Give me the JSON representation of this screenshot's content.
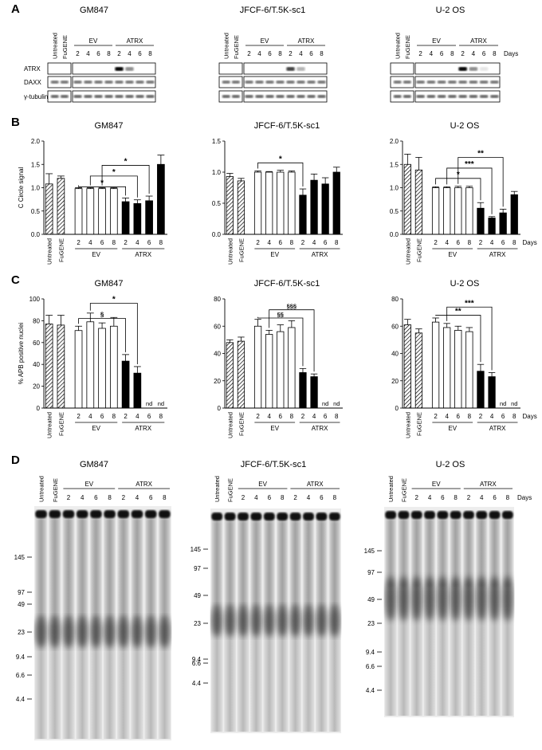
{
  "panel_letters": [
    "A",
    "B",
    "C",
    "D"
  ],
  "cell_lines": [
    "GM847",
    "JFCF-6/T.5K-sc1",
    "U-2 OS"
  ],
  "lane_headers": {
    "untreated": "Untreated",
    "fugene": "FuGENE",
    "ev": "EV",
    "atrx": "ATRX",
    "days_label": "Days",
    "day_ticks": [
      "2",
      "4",
      "6",
      "8"
    ]
  },
  "western": {
    "rows": [
      "ATRX",
      "DAXX",
      "γ-tubulin"
    ],
    "atrx_band_relative_intensity": [
      [
        0,
        0,
        0,
        0,
        1.0,
        0.45,
        0,
        0
      ],
      [
        0,
        0,
        0,
        0,
        0.75,
        0.3,
        0,
        0
      ],
      [
        0,
        0,
        0,
        0,
        1.0,
        0.45,
        0.1,
        0
      ]
    ]
  },
  "chart_data": [
    {
      "type": "bar",
      "panel": "B",
      "title": "GM847",
      "ylabel": "C Circle signal",
      "ylim": [
        0,
        2.0
      ],
      "yticks": [
        "0.0",
        "0.5",
        "1.0",
        "1.5",
        "2.0"
      ],
      "categories": [
        "Untreated",
        "FuGENE",
        "EV 2",
        "EV 4",
        "EV 6",
        "EV 8",
        "ATRX 2",
        "ATRX 4",
        "ATRX 6",
        "ATRX 8"
      ],
      "values": [
        1.08,
        1.2,
        0.98,
        0.98,
        0.98,
        0.98,
        0.7,
        0.66,
        0.72,
        1.5
      ],
      "errors": [
        0.22,
        0.05,
        0.02,
        0.02,
        0.02,
        0.02,
        0.08,
        0.08,
        0.1,
        0.2
      ],
      "annotations": [
        "*",
        "*",
        "*"
      ]
    },
    {
      "type": "bar",
      "panel": "B",
      "title": "JFCF-6/T.5K-sc1",
      "ylabel": "",
      "ylim": [
        0,
        1.5
      ],
      "yticks": [
        "0.0",
        "0.5",
        "1.0",
        "1.5"
      ],
      "categories": [
        "Untreated",
        "FuGENE",
        "EV 2",
        "EV 4",
        "EV 6",
        "EV 8",
        "ATRX 2",
        "ATRX 4",
        "ATRX 6",
        "ATRX 8"
      ],
      "values": [
        0.93,
        0.86,
        1.0,
        1.0,
        1.0,
        1.0,
        0.63,
        0.87,
        0.81,
        1.0
      ],
      "errors": [
        0.05,
        0.04,
        0.02,
        0.01,
        0.03,
        0.02,
        0.1,
        0.1,
        0.1,
        0.08
      ],
      "annotations": [
        "*"
      ]
    },
    {
      "type": "bar",
      "panel": "B",
      "title": "U-2 OS",
      "ylabel": "",
      "ylim": [
        0,
        2.0
      ],
      "yticks": [
        "0.0",
        "0.5",
        "1.0",
        "1.5",
        "2.0"
      ],
      "categories": [
        "Untreated",
        "FuGENE",
        "EV 2",
        "EV 4",
        "EV 6",
        "EV 8",
        "ATRX 2",
        "ATRX 4",
        "ATRX 6",
        "ATRX 8"
      ],
      "values": [
        1.5,
        1.38,
        1.0,
        1.0,
        1.0,
        1.0,
        0.56,
        0.35,
        0.46,
        0.85
      ],
      "errors": [
        0.22,
        0.27,
        0.02,
        0.02,
        0.03,
        0.03,
        0.12,
        0.03,
        0.08,
        0.07
      ],
      "annotations": [
        "*",
        "***",
        "**"
      ]
    },
    {
      "type": "bar",
      "panel": "C",
      "title": "GM847",
      "ylabel": "% APB positive nuclei",
      "ylim": [
        0,
        100
      ],
      "yticks": [
        "0",
        "20",
        "40",
        "60",
        "80",
        "100"
      ],
      "categories": [
        "Untreated",
        "FuGENE",
        "EV 2",
        "EV 4",
        "EV 6",
        "EV 8",
        "ATRX 2",
        "ATRX 4",
        "ATRX 6",
        "ATRX 8"
      ],
      "values": [
        77,
        76,
        71,
        79,
        73,
        75,
        43,
        32,
        null,
        null
      ],
      "errors": [
        8,
        9,
        4,
        8,
        5,
        8,
        6,
        6,
        null,
        null
      ],
      "annotations": [
        "§",
        "*",
        "nd",
        "nd"
      ]
    },
    {
      "type": "bar",
      "panel": "C",
      "title": "JFCF-6/T.5K-sc1",
      "ylabel": "",
      "ylim": [
        0,
        80
      ],
      "yticks": [
        "0",
        "20",
        "40",
        "60",
        "80"
      ],
      "categories": [
        "Untreated",
        "FuGENE",
        "EV 2",
        "EV 4",
        "EV 6",
        "EV 8",
        "ATRX 2",
        "ATRX 4",
        "ATRX 6",
        "ATRX 8"
      ],
      "values": [
        48,
        49,
        60,
        54,
        56,
        59,
        26,
        23,
        null,
        null
      ],
      "errors": [
        2,
        3,
        5,
        3,
        5,
        5,
        3,
        2,
        null,
        null
      ],
      "annotations": [
        "§§",
        "§§§",
        "nd",
        "nd"
      ]
    },
    {
      "type": "bar",
      "panel": "C",
      "title": "U-2 OS",
      "ylabel": "",
      "ylim": [
        0,
        80
      ],
      "yticks": [
        "0",
        "20",
        "40",
        "60",
        "80"
      ],
      "categories": [
        "Untreated",
        "FuGENE",
        "EV 2",
        "EV 4",
        "EV 6",
        "EV 8",
        "ATRX 2",
        "ATRX 4",
        "ATRX 6",
        "ATRX 8"
      ],
      "values": [
        61,
        55,
        63,
        59,
        57,
        56,
        27,
        23,
        null,
        null
      ],
      "errors": [
        4,
        3,
        3,
        3,
        3,
        3,
        5,
        3,
        null,
        null
      ],
      "annotations": [
        "**",
        "***",
        "nd",
        "nd"
      ]
    }
  ],
  "gels": {
    "size_markers": [
      "145",
      "97",
      "49",
      "23",
      "9.4",
      "6.6",
      "4.4"
    ],
    "smear_center_marker": [
      "23",
      "23",
      "49"
    ]
  }
}
